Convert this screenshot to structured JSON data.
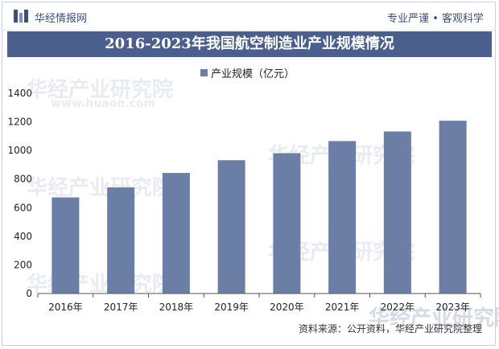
{
  "header": {
    "brand": "华经情报网",
    "slogan": "专业严谨 • 客观科学"
  },
  "title": "2016-2023年我国航空制造业产业规模情况",
  "watermark": {
    "text": "华经产业研究院",
    "url": "www.huaon.com"
  },
  "source": "资料来源：公开资料，华经产业研究院整理",
  "colors": {
    "bar": "#6b7ea6",
    "title_bg": "#4a5f8e",
    "brand": "#3a4f7a"
  },
  "chart_data": {
    "type": "bar",
    "categories": [
      "2016年",
      "2017年",
      "2018年",
      "2019年",
      "2020年",
      "2021年",
      "2022年",
      "2023年"
    ],
    "series": [
      {
        "name": "产业规模（亿元）",
        "values": [
          672,
          742,
          843,
          932,
          981,
          1066,
          1133,
          1208
        ]
      }
    ],
    "title": "2016-2023年我国航空制造业产业规模情况",
    "xlabel": "",
    "ylabel": "",
    "ylim": [
      0,
      1400
    ],
    "yticks": [
      0,
      200,
      400,
      600,
      800,
      1000,
      1200,
      1400
    ],
    "grid": false,
    "legend": "top-center"
  }
}
